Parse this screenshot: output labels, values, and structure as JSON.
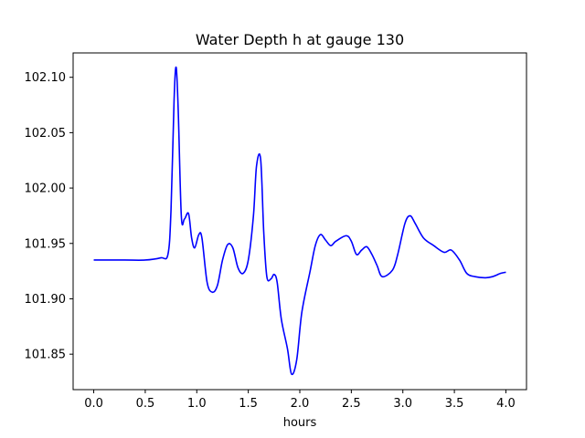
{
  "chart_data": {
    "type": "line",
    "title": "Water Depth h at gauge 130",
    "xlabel": "hours",
    "ylabel": "",
    "xlim": [
      -0.2,
      4.2
    ],
    "ylim": [
      101.818,
      102.122
    ],
    "xticks": [
      0.0,
      0.5,
      1.0,
      1.5,
      2.0,
      2.5,
      3.0,
      3.5,
      4.0
    ],
    "xtick_labels": [
      "0.0",
      "0.5",
      "1.0",
      "1.5",
      "2.0",
      "2.5",
      "3.0",
      "3.5",
      "4.0"
    ],
    "yticks": [
      101.85,
      101.9,
      101.95,
      102.0,
      102.05,
      102.1
    ],
    "ytick_labels": [
      "101.85",
      "101.90",
      "101.95",
      "102.00",
      "102.05",
      "102.10"
    ],
    "grid": false,
    "series": [
      {
        "color": "#0000ff",
        "x": [
          0.0,
          0.3,
          0.5,
          0.65,
          0.72,
          0.75,
          0.78,
          0.8,
          0.82,
          0.85,
          0.88,
          0.92,
          0.95,
          0.98,
          1.02,
          1.05,
          1.1,
          1.15,
          1.2,
          1.25,
          1.3,
          1.35,
          1.4,
          1.45,
          1.5,
          1.55,
          1.58,
          1.62,
          1.65,
          1.68,
          1.72,
          1.75,
          1.78,
          1.82,
          1.88,
          1.92,
          1.97,
          2.02,
          2.1,
          2.15,
          2.2,
          2.25,
          2.3,
          2.35,
          2.45,
          2.5,
          2.55,
          2.6,
          2.65,
          2.7,
          2.75,
          2.8,
          2.9,
          2.95,
          3.02,
          3.07,
          3.12,
          3.2,
          3.3,
          3.4,
          3.47,
          3.55,
          3.62,
          3.7,
          3.8,
          3.87,
          3.95,
          4.0
        ],
        "y": [
          101.935,
          101.935,
          101.935,
          101.937,
          101.94,
          101.98,
          102.08,
          102.109,
          102.07,
          101.975,
          101.972,
          101.977,
          101.955,
          101.946,
          101.958,
          101.955,
          101.915,
          101.906,
          101.912,
          101.935,
          101.949,
          101.946,
          101.928,
          101.923,
          101.935,
          101.975,
          102.02,
          102.026,
          101.96,
          101.92,
          101.918,
          101.922,
          101.915,
          101.882,
          101.855,
          101.832,
          101.845,
          101.888,
          101.925,
          101.948,
          101.958,
          101.953,
          101.948,
          101.952,
          101.957,
          101.952,
          101.94,
          101.944,
          101.947,
          101.94,
          101.93,
          101.92,
          101.926,
          101.94,
          101.968,
          101.975,
          101.968,
          101.955,
          101.948,
          101.942,
          101.944,
          101.935,
          101.923,
          101.92,
          101.919,
          101.92,
          101.923,
          101.924
        ]
      }
    ]
  }
}
